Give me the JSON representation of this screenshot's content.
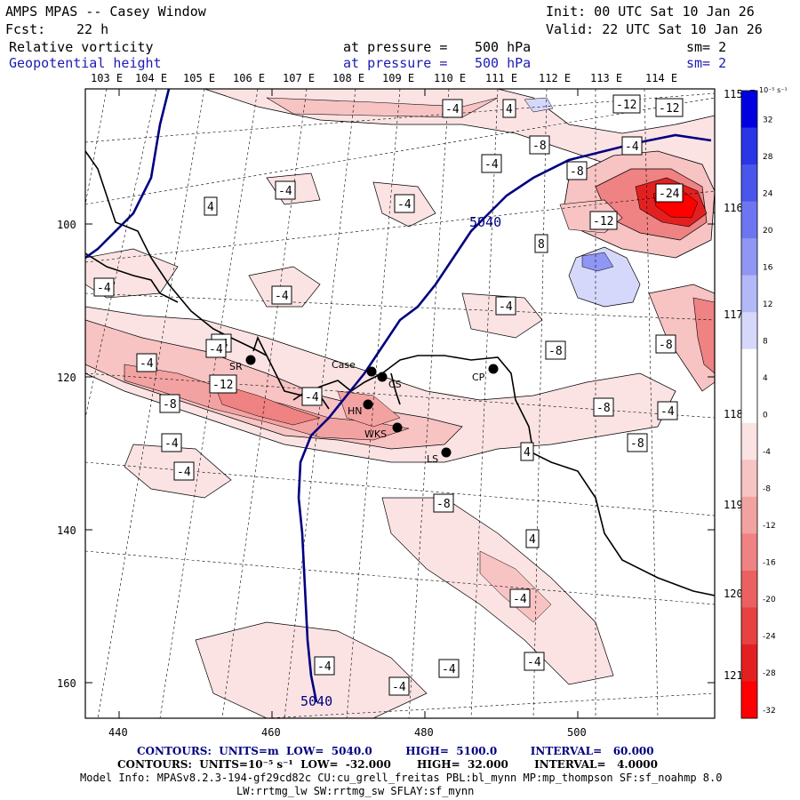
{
  "header": {
    "model": "AMPS MPAS -- Casey Window",
    "init": "Init: 00 UTC Sat 10 Jan 26",
    "fcst_label": "Fcst:",
    "fcst_value": "22 h",
    "valid": "Valid: 22 UTC Sat 10 Jan 26",
    "field1_name": "Relative vorticity",
    "field1_pressure_label": "at pressure =",
    "field1_pressure": "500 hPa",
    "field1_sm": "sm= 2",
    "field2_name": "Geopotential height",
    "field2_pressure_label": "at pressure =",
    "field2_pressure": "500 hPa",
    "field2_sm": "sm= 2"
  },
  "map": {
    "top_lon_labels": [
      "103 E",
      "104 E",
      "105 E",
      "106 E",
      "107 E",
      "108 E",
      "109 E",
      "110 E",
      "111 E",
      "112 E",
      "113 E",
      "114 E"
    ],
    "right_lon_labels": [
      "115 E",
      "116 E",
      "117 E",
      "118 E",
      "119 E",
      "120 E",
      "121 E"
    ],
    "x_ticks": [
      "440",
      "460",
      "480",
      "500"
    ],
    "y_ticks": [
      "100",
      "120",
      "140",
      "160"
    ],
    "stations": [
      {
        "id": "SR",
        "label": "SR"
      },
      {
        "id": "Casey",
        "label": "Case"
      },
      {
        "id": "CS",
        "label": "CS"
      },
      {
        "id": "HN",
        "label": "HN"
      },
      {
        "id": "WKS",
        "label": "WKS"
      },
      {
        "id": "CP",
        "label": "CP"
      },
      {
        "id": "LS",
        "label": "LS"
      }
    ],
    "contour_labels": [
      "-4",
      "4",
      "-12",
      "-12",
      "-8",
      "-4",
      "-8",
      "-24",
      "-4",
      "-12",
      "4",
      "8",
      "-4",
      "-4",
      "-4",
      "-4",
      "-8",
      "-4",
      "-8",
      "-12",
      "-8",
      "-4",
      "-8",
      "-4",
      "-4",
      "4",
      "-4",
      "-8",
      "4",
      "-4",
      "-4",
      "-4",
      "-4",
      "-8",
      "-4",
      "-4",
      "-4",
      "-4"
    ],
    "height_labels": [
      "5040",
      "5040"
    ]
  },
  "colorbar": {
    "units": "10⁻⁵ s⁻¹",
    "labels": [
      "32",
      "28",
      "24",
      "20",
      "16",
      "12",
      "8",
      "4",
      "0",
      "-4",
      "-8",
      "-12",
      "-16",
      "-20",
      "-24",
      "-28",
      "-32"
    ],
    "colors": [
      "#0000e0",
      "#2a35e6",
      "#4a55ec",
      "#6d76f0",
      "#8f96f3",
      "#b3b8f7",
      "#d6d8fb",
      "#ffffff",
      "#ffffff",
      "#fbe3e3",
      "#f7c3c3",
      "#f3a2a2",
      "#ef8282",
      "#eb6161",
      "#e74141",
      "#e32020",
      "#ff0000"
    ]
  },
  "footer": {
    "line1": "CONTOURS:  UNITS=m  LOW=  5040.0         HIGH=  5100.0         INTERVAL=   60.000",
    "line2": "CONTOURS:  UNITS=10⁻⁵ s⁻¹  LOW=  -32.000       HIGH=  32.000       INTERVAL=   4.0000",
    "model_info": "Model Info: MPASv8.2.3-194-gf29cd82c CU:cu_grell_freitas PBL:bl_mynn MP:mp_thompson SF:sf_noahmp 8.0",
    "model_info2": "LW:rrtmg_lw SW:rrtmg_sw SFLAY:sf_mynn"
  },
  "colors": {
    "height_contour": "#000080",
    "land_line": "#000000"
  }
}
